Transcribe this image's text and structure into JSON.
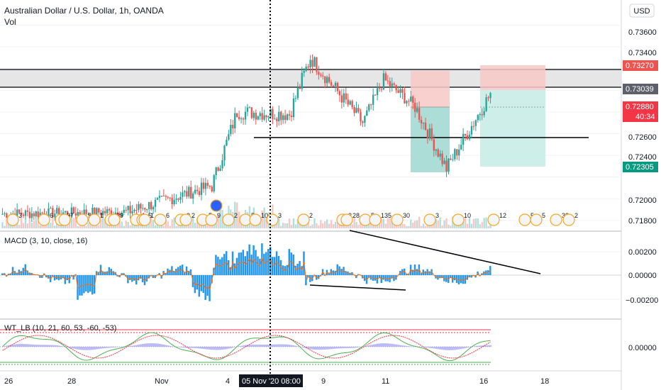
{
  "header": {
    "title": "Australian Dollar / U.S. Dollar, 1h, OANDA",
    "volume_label": "Vol",
    "currency_button": "USD"
  },
  "x_axis": {
    "labels": [
      "26",
      "28",
      "Nov",
      "4",
      "9",
      "11",
      "16",
      "18"
    ],
    "crosshair_label": "05 Nov '20   08:00"
  },
  "price_panel": {
    "ticks": [
      "0.73600",
      "0.73400",
      "0.72600",
      "0.72400",
      "0.72000",
      "0.71800"
    ],
    "price_labels": [
      {
        "text": "0.73270",
        "color": "#ef5350"
      },
      {
        "text": "0.73039",
        "color": "#555555"
      },
      {
        "text": "0.72880",
        "color": "#f23645"
      },
      {
        "text": "40:34",
        "color": "#ffffff"
      },
      {
        "text": "0.72305",
        "color": "#089981"
      }
    ]
  },
  "macd_panel": {
    "title": "MACD (3, 10, close, 16)",
    "ticks": [
      "0.00200",
      "0.00000",
      "−0.00200"
    ]
  },
  "wt_panel": {
    "title": "WT_LB (10, 21, 60, 53, -60, -53)",
    "ticks": [
      "0.00000"
    ]
  },
  "event_badges": [
    "3",
    "6",
    "8",
    "7",
    "5",
    "1",
    "2",
    "9",
    "1",
    "5",
    "1",
    "6",
    "3",
    "2",
    "5",
    "9",
    "2",
    "5",
    "10",
    "3",
    "2",
    "2",
    "28",
    "5",
    "135",
    "30",
    "3",
    "10",
    "12",
    "5",
    "5",
    "33",
    "2"
  ],
  "colors": {
    "up": "#26a69a",
    "down": "#ef5350",
    "macd_hist": "#2196f3",
    "signal": "#ff6d00",
    "wt1": "#4caf50",
    "wt2": "#f23645",
    "wt_area": "#9c9cf0"
  },
  "chart_data": {
    "type": "candlestick",
    "title": "Australian Dollar / U.S. Dollar, 1h, OANDA",
    "y_range": [
      0.7174,
      0.738
    ],
    "segments": [
      {
        "bars": 60,
        "from": 0.7186,
        "to": 0.7188,
        "vol": 0.0005
      },
      {
        "bars": 40,
        "from": 0.7188,
        "to": 0.7212,
        "vol": 0.0006
      },
      {
        "bars": 12,
        "from": 0.7212,
        "to": 0.728,
        "vol": 0.0007
      },
      {
        "bars": 25,
        "from": 0.728,
        "to": 0.7278,
        "vol": 0.0007
      },
      {
        "bars": 10,
        "from": 0.7278,
        "to": 0.733,
        "vol": 0.0008
      },
      {
        "bars": 25,
        "from": 0.733,
        "to": 0.727,
        "vol": 0.0007
      },
      {
        "bars": 10,
        "from": 0.727,
        "to": 0.731,
        "vol": 0.0006
      },
      {
        "bars": 15,
        "from": 0.731,
        "to": 0.7285,
        "vol": 0.0006
      },
      {
        "bars": 15,
        "from": 0.7285,
        "to": 0.7228,
        "vol": 0.0007
      },
      {
        "bars": 22,
        "from": 0.7228,
        "to": 0.73,
        "vol": 0.0007
      }
    ],
    "levels": {
      "resistance_top": 0.7327,
      "resistance_bottom": 0.7304,
      "support": 0.7262,
      "current": 0.7288
    },
    "positions": [
      {
        "entry": 0.7288,
        "stop": 0.731,
        "target": 0.72245
      },
      {
        "entry": 0.7304,
        "stop": 0.7327,
        "target": 0.72305
      }
    ]
  }
}
